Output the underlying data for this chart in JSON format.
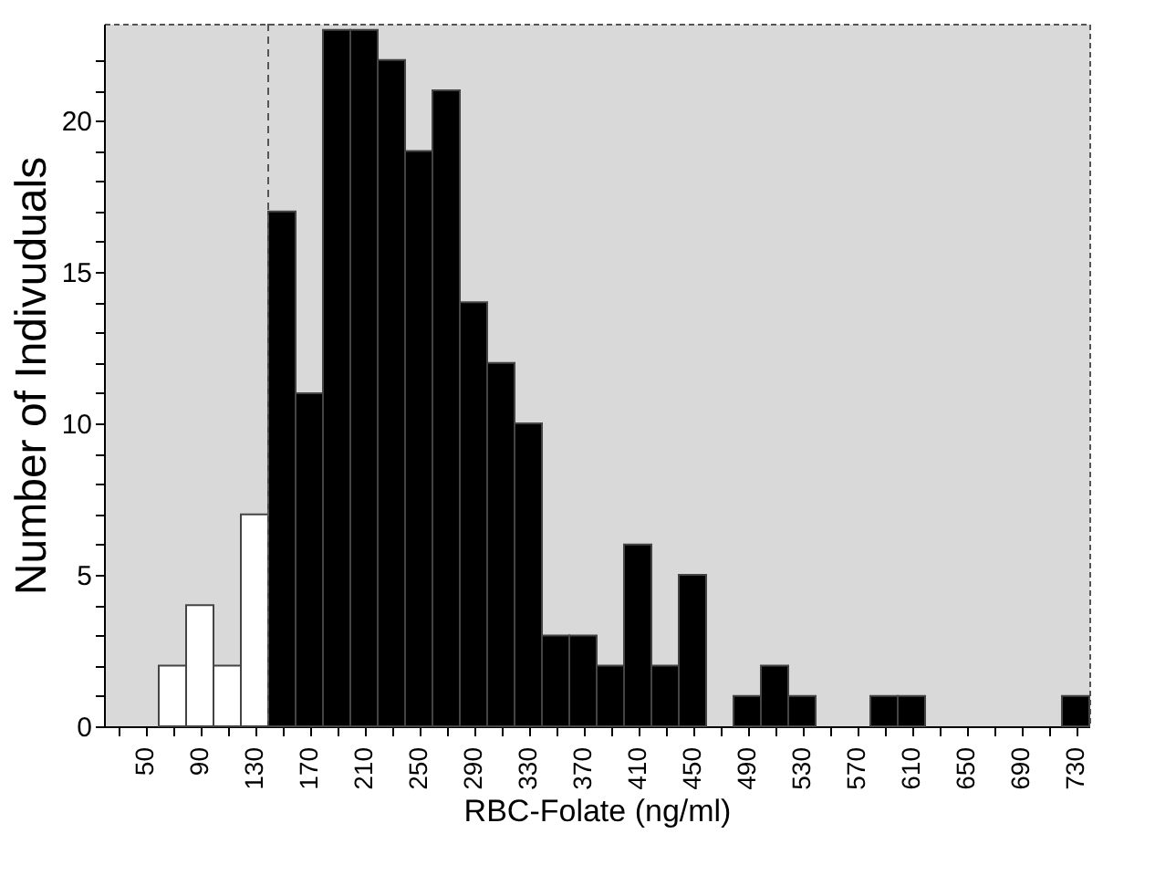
{
  "chart_data": {
    "type": "histogram",
    "xlabel": "RBC-Folate (ng/ml)",
    "ylabel": "Number of Indivuduals",
    "bins": [
      60,
      80,
      100,
      120,
      140,
      160,
      180,
      200,
      220,
      240,
      260,
      280,
      300,
      320,
      340,
      360,
      380,
      400,
      420,
      440,
      460,
      480,
      500,
      520,
      540,
      560,
      580,
      600,
      620,
      640,
      660,
      680,
      700,
      720,
      740
    ],
    "values": [
      2,
      4,
      2,
      7,
      17,
      11,
      23,
      23,
      22,
      19,
      21,
      14,
      12,
      10,
      3,
      3,
      2,
      6,
      2,
      5,
      0,
      1,
      2,
      1,
      0,
      0,
      1,
      1,
      0,
      0,
      0,
      0,
      0,
      1
    ],
    "colors": [
      "#ffffff",
      "#ffffff",
      "#ffffff",
      "#ffffff",
      "#000000",
      "#000000",
      "#000000",
      "#000000",
      "#000000",
      "#000000",
      "#000000",
      "#000000",
      "#000000",
      "#000000",
      "#000000",
      "#000000",
      "#000000",
      "#000000",
      "#000000",
      "#000000",
      "#000000",
      "#000000",
      "#000000",
      "#000000",
      "#000000",
      "#000000",
      "#000000",
      "#000000",
      "#000000",
      "#000000",
      "#000000",
      "#000000",
      "#000000",
      "#000000"
    ],
    "xlim": [
      20,
      740
    ],
    "ylim": [
      0,
      23.2
    ],
    "xticks": [
      {
        "value": 30,
        "label": null
      },
      50,
      {
        "value": 70,
        "label": null
      },
      90,
      {
        "value": 110,
        "label": null
      },
      130,
      {
        "value": 150,
        "label": null
      },
      170,
      {
        "value": 190,
        "label": null
      },
      210,
      {
        "value": 230,
        "label": null
      },
      250,
      {
        "value": 270,
        "label": null
      },
      290,
      {
        "value": 310,
        "label": null
      },
      330,
      {
        "value": 350,
        "label": null
      },
      370,
      {
        "value": 390,
        "label": null
      },
      410,
      {
        "value": 430,
        "label": null
      },
      450,
      {
        "value": 470,
        "label": null
      },
      490,
      {
        "value": 510,
        "label": null
      },
      530,
      {
        "value": 550,
        "label": null
      },
      570,
      {
        "value": 590,
        "label": null
      },
      610,
      {
        "value": 630,
        "label": null
      },
      650,
      {
        "value": 670,
        "label": null
      },
      690,
      {
        "value": 710,
        "label": null
      },
      730
    ],
    "yticks": [
      0,
      {
        "value": 1,
        "label": null
      },
      {
        "value": 2,
        "label": null
      },
      {
        "value": 3,
        "label": null
      },
      {
        "value": 4,
        "label": null
      },
      5,
      {
        "value": 6,
        "label": null
      },
      {
        "value": 7,
        "label": null
      },
      {
        "value": 8,
        "label": null
      },
      {
        "value": 9,
        "label": null
      },
      10,
      {
        "value": 11,
        "label": null
      },
      {
        "value": 12,
        "label": null
      },
      {
        "value": 13,
        "label": null
      },
      {
        "value": 14,
        "label": null
      },
      15,
      {
        "value": 16,
        "label": null
      },
      {
        "value": 17,
        "label": null
      },
      {
        "value": 18,
        "label": null
      },
      {
        "value": 19,
        "label": null
      },
      20,
      {
        "value": 21,
        "label": null
      },
      {
        "value": 22,
        "label": null
      }
    ],
    "ref_lines": [
      {
        "axis": "x",
        "value": 140,
        "label": null,
        "color": "#555555",
        "line_style": "dashed"
      }
    ],
    "grid": false
  }
}
